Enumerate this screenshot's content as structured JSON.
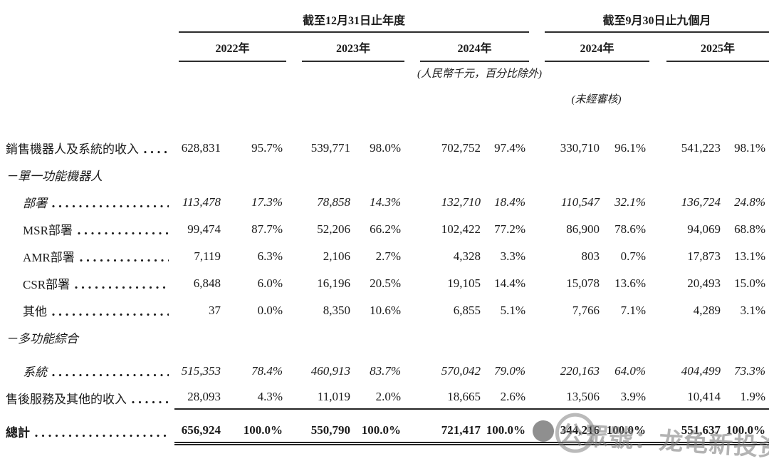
{
  "table": {
    "group_headers": [
      {
        "label": "截至12月31日止年度"
      },
      {
        "label": "截至9月30日止九個月"
      }
    ],
    "year_headers": [
      "2022年",
      "2023年",
      "2024年",
      "2024年",
      "2025年"
    ],
    "notes": {
      "units": "(人民幣千元，百分比除外)",
      "unaudited": "(未經審核)"
    },
    "rows": [
      {
        "label": "銷售機器人及系統的收入",
        "style": "normal",
        "indent": 0,
        "leader": true,
        "values": [
          "628,831",
          "95.7%",
          "539,771",
          "98.0%",
          "702,752",
          "97.4%",
          "330,710",
          "96.1%",
          "541,223",
          "98.1%"
        ]
      },
      {
        "label": "－單一功能機器人",
        "style": "italic",
        "indent": 0,
        "leader": false,
        "values": []
      },
      {
        "label": "部署",
        "style": "italic",
        "indent": 1,
        "leader": true,
        "values": [
          "113,478",
          "17.3%",
          "78,858",
          "14.3%",
          "132,710",
          "18.4%",
          "110,547",
          "32.1%",
          "136,724",
          "24.8%"
        ]
      },
      {
        "label": "MSR部署",
        "style": "normal",
        "indent": 1,
        "leader": true,
        "values": [
          "99,474",
          "87.7%",
          "52,206",
          "66.2%",
          "102,422",
          "77.2%",
          "86,900",
          "78.6%",
          "94,069",
          "68.8%"
        ]
      },
      {
        "label": "AMR部署",
        "style": "normal",
        "indent": 1,
        "leader": true,
        "values": [
          "7,119",
          "6.3%",
          "2,106",
          "2.7%",
          "4,328",
          "3.3%",
          "803",
          "0.7%",
          "17,873",
          "13.1%"
        ]
      },
      {
        "label": "CSR部署",
        "style": "normal",
        "indent": 1,
        "leader": true,
        "values": [
          "6,848",
          "6.0%",
          "16,196",
          "20.5%",
          "19,105",
          "14.4%",
          "15,078",
          "13.6%",
          "20,493",
          "15.0%"
        ]
      },
      {
        "label": "其他",
        "style": "normal",
        "indent": 1,
        "leader": true,
        "values": [
          "37",
          "0.0%",
          "8,350",
          "10.6%",
          "6,855",
          "5.1%",
          "7,766",
          "7.1%",
          "4,289",
          "3.1%"
        ]
      },
      {
        "label": "－多功能綜合",
        "style": "italic",
        "indent": 0,
        "leader": false,
        "values": []
      },
      {
        "label": "系統",
        "style": "italic",
        "indent": 1,
        "leader": true,
        "values": [
          "515,353",
          "78.4%",
          "460,913",
          "83.7%",
          "570,042",
          "79.0%",
          "220,163",
          "64.0%",
          "404,499",
          "73.3%"
        ]
      },
      {
        "label": "售後服務及其他的收入",
        "style": "normal",
        "indent": 0,
        "leader": true,
        "rule": "single",
        "values": [
          "28,093",
          "4.3%",
          "11,019",
          "2.0%",
          "18,665",
          "2.6%",
          "13,506",
          "3.9%",
          "10,414",
          "1.9%"
        ]
      },
      {
        "label": "總計",
        "style": "bold",
        "indent": 0,
        "leader": true,
        "rule": "double",
        "values": [
          "656,924",
          "100.0%",
          "550,790",
          "100.0%",
          "721,417",
          "100.0%",
          "344,216",
          "100.0%",
          "551,637",
          "100.0%"
        ]
      }
    ]
  },
  "watermark": {
    "text": "公眾號：龙龟新投资"
  }
}
